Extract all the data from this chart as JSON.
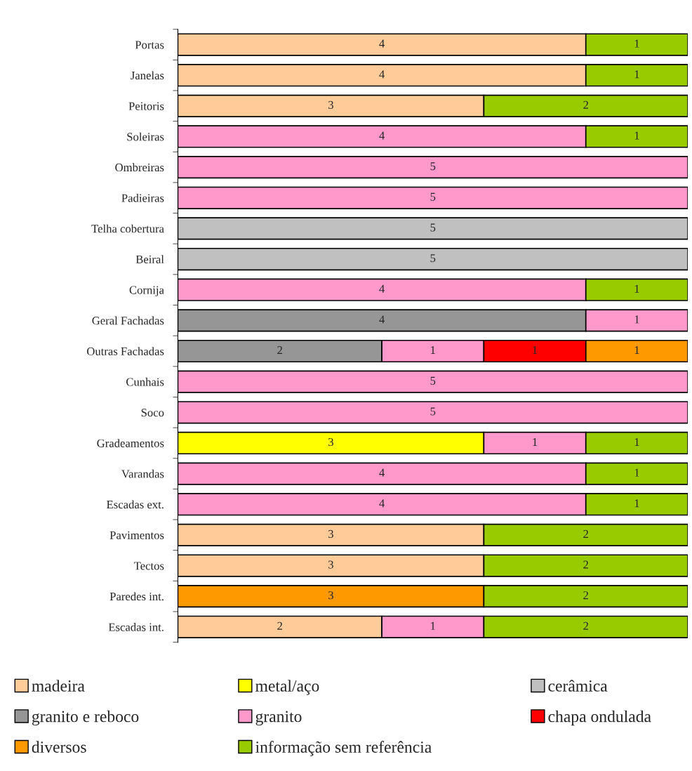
{
  "chart_data": {
    "type": "bar",
    "orientation": "horizontal",
    "stacked": true,
    "data_labels": true,
    "legend": "bottom",
    "categories": [
      "Portas",
      "Janelas",
      "Peitoris",
      "Soleiras",
      "Ombreiras",
      "Padieiras",
      "Telha cobertura",
      "Beiral",
      "Cornija",
      "Geral Fachadas",
      "Outras Fachadas",
      "Cunhais",
      "Soco",
      "Gradeamentos",
      "Varandas",
      "Escadas ext.",
      "Pavimentos",
      "Tectos",
      "Paredes int.",
      "Escadas int."
    ],
    "series": [
      {
        "name": "madeira",
        "color": "#ffcc99",
        "values": [
          4,
          4,
          3,
          null,
          null,
          null,
          null,
          null,
          null,
          null,
          null,
          null,
          null,
          null,
          null,
          null,
          3,
          3,
          null,
          2
        ]
      },
      {
        "name": "metal/aço",
        "color": "#ffff00",
        "values": [
          null,
          null,
          null,
          null,
          null,
          null,
          null,
          null,
          null,
          null,
          null,
          null,
          null,
          3,
          null,
          null,
          null,
          null,
          null,
          null
        ]
      },
      {
        "name": "cerâmica",
        "color": "#c0c0c0",
        "values": [
          null,
          null,
          null,
          null,
          null,
          null,
          5,
          5,
          null,
          null,
          null,
          null,
          null,
          null,
          null,
          null,
          null,
          null,
          null,
          null
        ]
      },
      {
        "name": "granito e reboco",
        "color": "#969696",
        "values": [
          null,
          null,
          null,
          null,
          null,
          null,
          null,
          null,
          null,
          4,
          2,
          null,
          null,
          null,
          null,
          null,
          null,
          null,
          null,
          null
        ]
      },
      {
        "name": "granito",
        "color": "#ff99cc",
        "values": [
          null,
          null,
          null,
          4,
          5,
          5,
          null,
          null,
          4,
          1,
          1,
          5,
          5,
          1,
          4,
          4,
          null,
          null,
          null,
          1
        ]
      },
      {
        "name": "chapa ondulada",
        "color": "#ff0000",
        "values": [
          null,
          null,
          null,
          null,
          null,
          null,
          null,
          null,
          null,
          null,
          1,
          null,
          null,
          null,
          null,
          null,
          null,
          null,
          null,
          null
        ]
      },
      {
        "name": "diversos",
        "color": "#ff9900",
        "values": [
          null,
          null,
          null,
          null,
          null,
          null,
          null,
          null,
          null,
          null,
          1,
          null,
          null,
          null,
          null,
          null,
          null,
          null,
          3,
          null
        ]
      },
      {
        "name": "informação sem referência",
        "color": "#99cc00",
        "values": [
          1,
          1,
          2,
          1,
          null,
          null,
          null,
          null,
          1,
          null,
          null,
          null,
          null,
          1,
          1,
          1,
          2,
          2,
          2,
          2
        ]
      }
    ]
  }
}
